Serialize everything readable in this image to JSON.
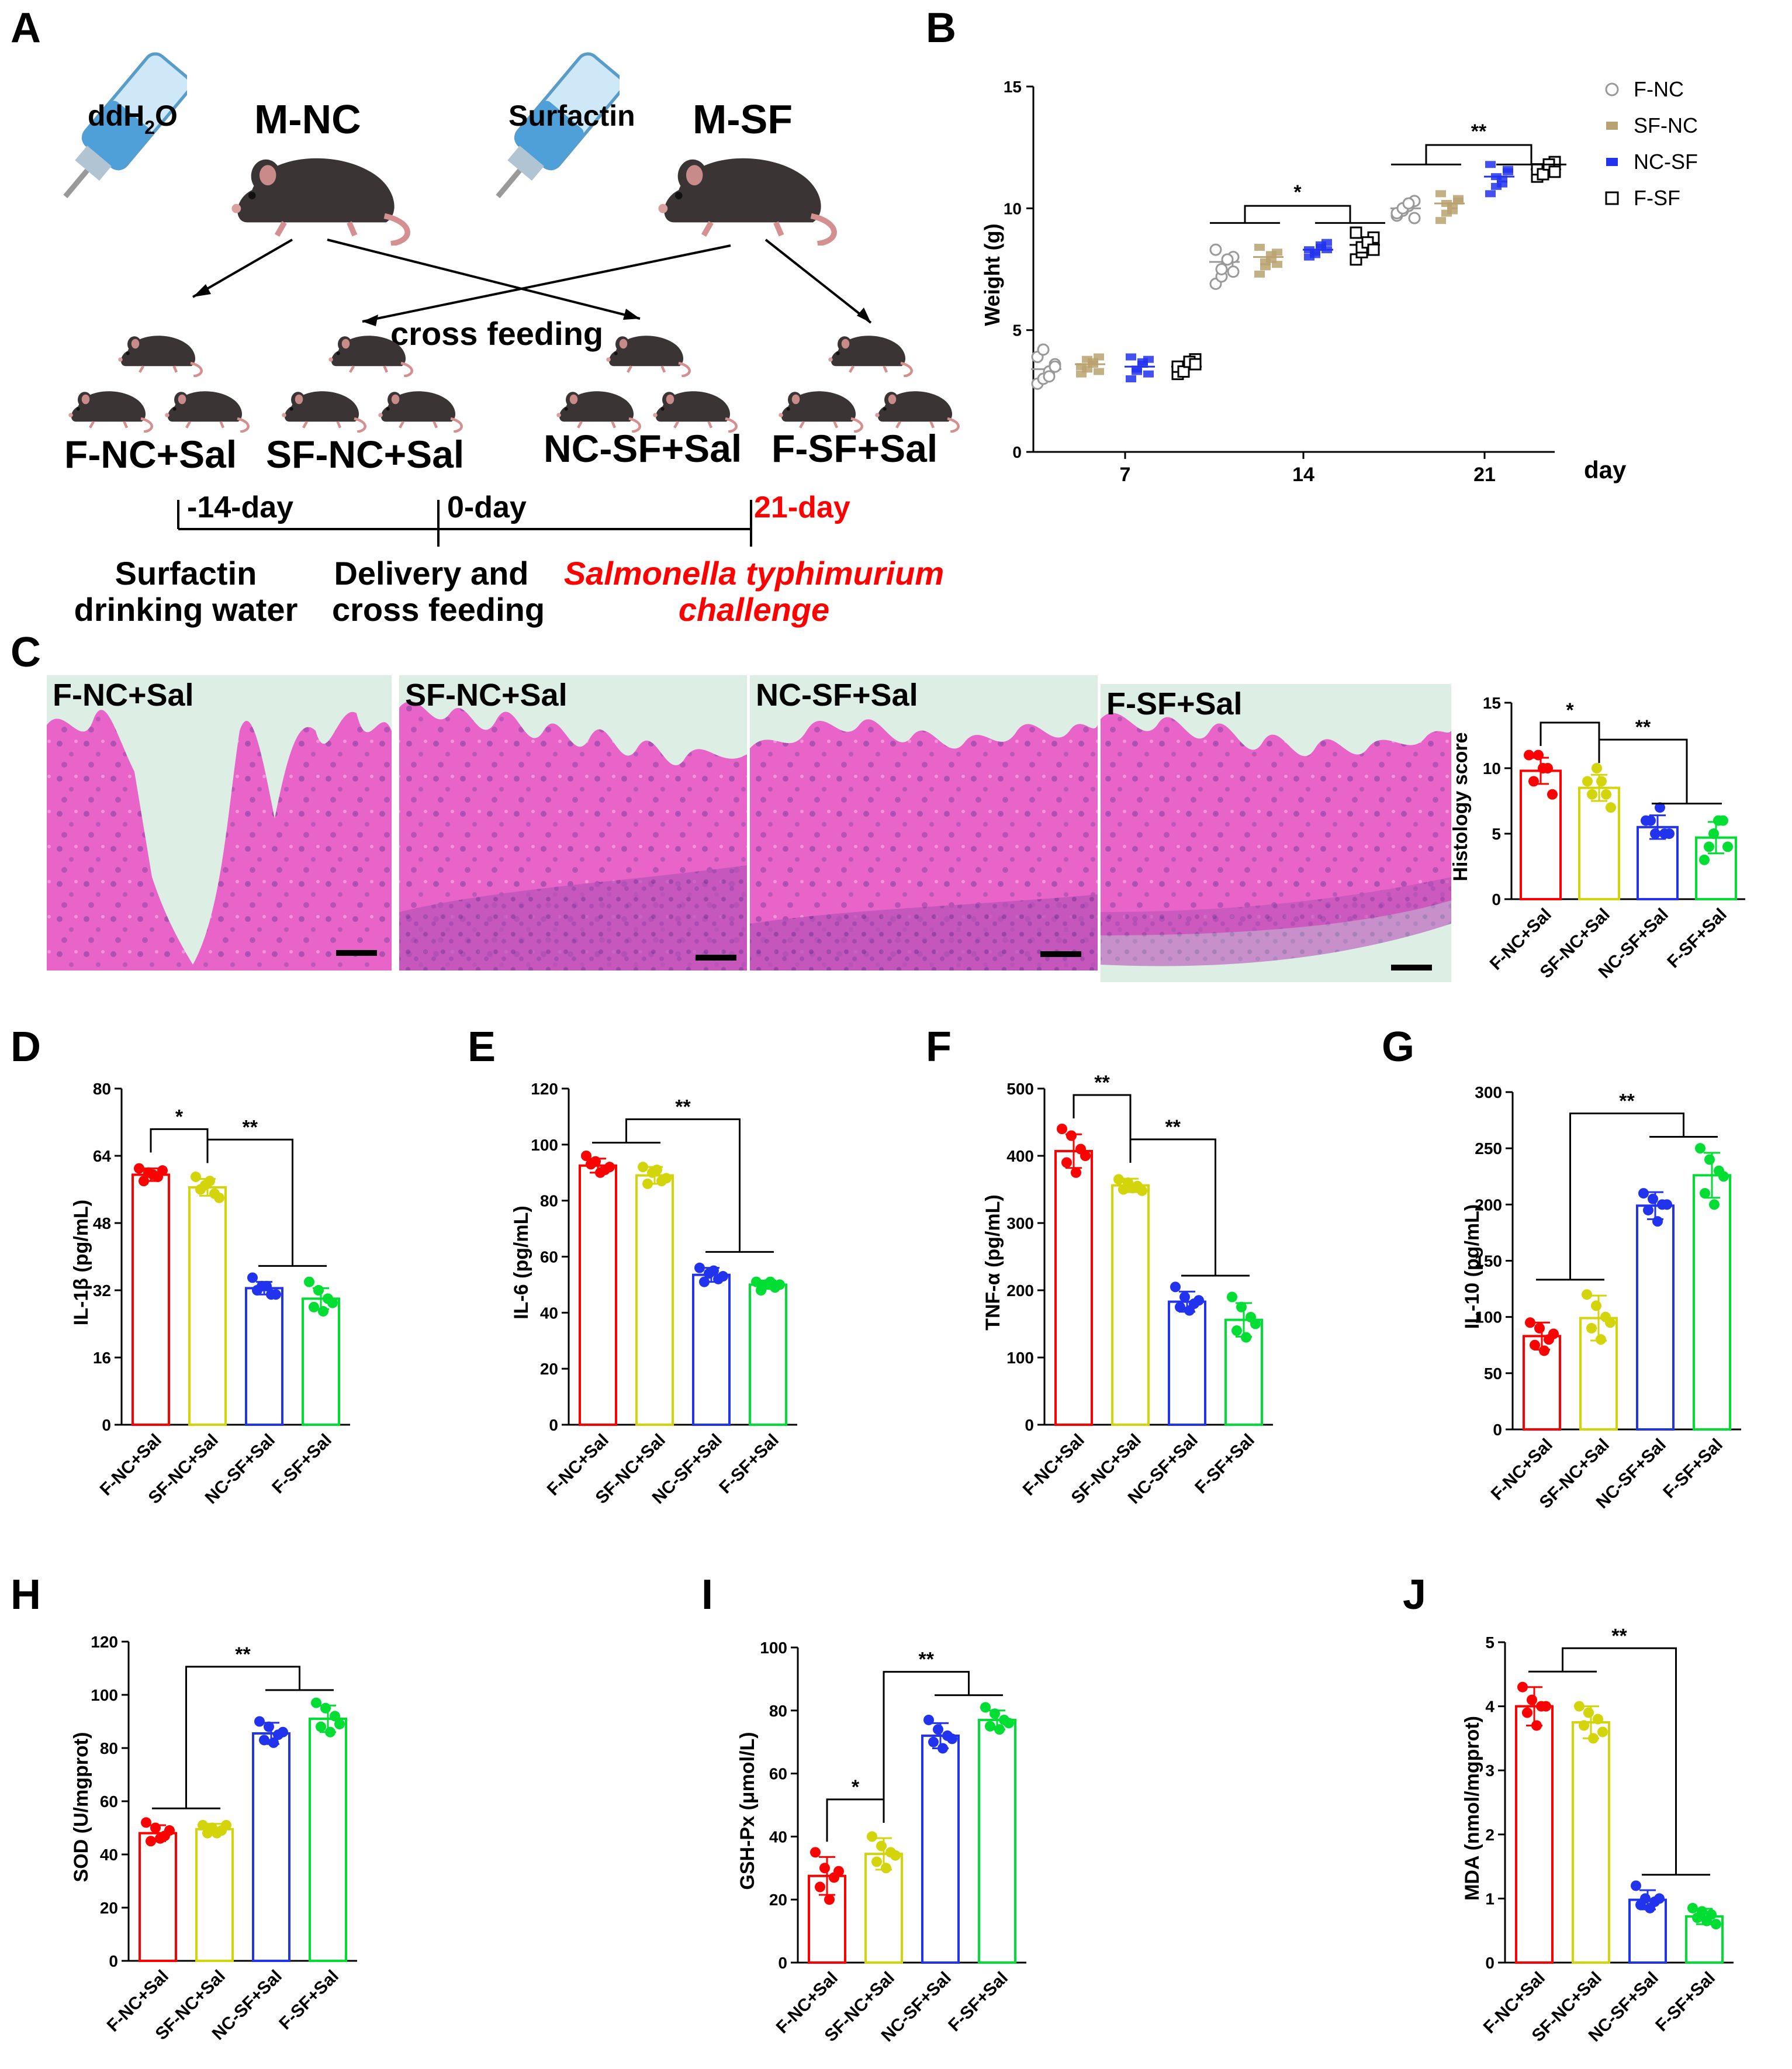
{
  "panel_letters": [
    "A",
    "B",
    "C",
    "D",
    "E",
    "F",
    "G",
    "H",
    "I",
    "J"
  ],
  "schematic": {
    "left_bottle": "ddH",
    "left_bottle_sub": "2",
    "left_bottle_suffix": "O",
    "right_bottle": "Surfactin",
    "mother_left": "M-NC",
    "mother_right": "M-SF",
    "cross_label": "cross feeding",
    "groups": [
      "F-NC+Sal",
      "SF-NC+Sal",
      "NC-SF+Sal",
      "F-SF+Sal"
    ],
    "timeline": {
      "points": [
        "-14-day",
        "0-day",
        "21-day"
      ],
      "events": [
        [
          "Surfactin",
          "drinking water"
        ],
        [
          "Delivery and",
          "cross feeding"
        ],
        [
          "Salmonella typhimurium",
          "challenge"
        ]
      ]
    }
  },
  "histology": {
    "labels": [
      "F-NC+Sal",
      "SF-NC+Sal",
      "NC-SF+Sal",
      "F-SF+Sal"
    ]
  },
  "colors": {
    "F-NC+Sal": "#ff0000",
    "SF-NC+Sal": "#d4d40a",
    "NC-SF+Sal": "#2233ee",
    "F-SF+Sal": "#00dd33",
    "F-NC": "#999999",
    "SF-NC": "#b8a270",
    "NC-SF": "#2233ee",
    "F-SF": "#000000",
    "timeline_red": "#ff0000"
  },
  "chart_data": [
    {
      "id": "B",
      "type": "scatter",
      "xlabel": "day",
      "ylabel": "Weight (g)",
      "categories": [
        "7",
        "14",
        "21"
      ],
      "ylim": [
        0,
        15
      ],
      "yticks": [
        0,
        5,
        10,
        15
      ],
      "legend_position": "top-right",
      "series": [
        {
          "name": "F-NC",
          "means": [
            3.4,
            7.8,
            10.0
          ],
          "points": [
            [
              2.8,
              3.0,
              3.3,
              3.6,
              3.9,
              4.2,
              3.1,
              3.5
            ],
            [
              6.9,
              7.2,
              7.7,
              8.0,
              8.3,
              7.5,
              7.9,
              7.4
            ],
            [
              9.7,
              9.9,
              10.1,
              10.3,
              9.8,
              10.0,
              10.2,
              9.6
            ]
          ]
        },
        {
          "name": "SF-NC",
          "means": [
            3.6,
            8.0,
            10.2
          ],
          "points": [
            [
              3.2,
              3.4,
              3.7,
              3.9,
              3.5,
              3.8,
              3.6,
              3.3
            ],
            [
              7.3,
              7.6,
              7.9,
              8.2,
              8.4,
              7.8,
              8.1,
              7.7
            ],
            [
              9.5,
              9.8,
              10.1,
              10.4,
              10.6,
              10.2,
              9.9,
              10.3
            ]
          ]
        },
        {
          "name": "NC-SF",
          "means": [
            3.5,
            8.3,
            11.3
          ],
          "points": [
            [
              3.0,
              3.3,
              3.6,
              3.8,
              3.9,
              3.4,
              3.7,
              3.2
            ],
            [
              8.0,
              8.2,
              8.4,
              8.6,
              8.3,
              8.1,
              8.5,
              8.3
            ],
            [
              10.6,
              10.9,
              11.2,
              11.5,
              11.8,
              11.3,
              11.0,
              11.6
            ]
          ]
        },
        {
          "name": "F-SF",
          "means": [
            3.5,
            8.5,
            11.6
          ],
          "points": [
            [
              3.2,
              3.4,
              3.6,
              3.8,
              3.5,
              3.3,
              3.7,
              3.6
            ],
            [
              7.9,
              8.2,
              8.5,
              8.8,
              9.0,
              8.4,
              8.6,
              8.3
            ],
            [
              11.3,
              11.5,
              11.7,
              11.9,
              11.6,
              11.4,
              11.8,
              11.5
            ]
          ]
        }
      ],
      "annotations": [
        {
          "day": "14",
          "text": "*"
        },
        {
          "day": "21",
          "text": "**"
        }
      ]
    },
    {
      "id": "C",
      "type": "bar",
      "ylabel": "Histology score",
      "categories": [
        "F-NC+Sal",
        "SF-NC+Sal",
        "NC-SF+Sal",
        "F-SF+Sal"
      ],
      "values": [
        9.8,
        8.5,
        5.5,
        4.7
      ],
      "errors": [
        1.0,
        1.0,
        0.9,
        1.2
      ],
      "points": [
        [
          11,
          11,
          10,
          9,
          10,
          8
        ],
        [
          9,
          10,
          8,
          8,
          9,
          7
        ],
        [
          6,
          5,
          5,
          6,
          7,
          5
        ],
        [
          3,
          5,
          6,
          4,
          6,
          4
        ]
      ],
      "ylim": [
        0,
        15
      ],
      "yticks": [
        0,
        5,
        10,
        15
      ],
      "brackets": [
        {
          "a": [
            0
          ],
          "b": [
            1
          ],
          "text": "*"
        },
        {
          "a": [
            1
          ],
          "b": [
            2,
            3
          ],
          "text": "**"
        }
      ]
    },
    {
      "id": "D",
      "type": "bar",
      "ylabel": "IL-1β (pg/mL)",
      "categories": [
        "F-NC+Sal",
        "SF-NC+Sal",
        "NC-SF+Sal",
        "F-SF+Sal"
      ],
      "values": [
        59.5,
        56.5,
        32.5,
        30.0
      ],
      "errors": [
        1.5,
        2.0,
        1.5,
        2.5
      ],
      "points": [
        [
          61,
          60,
          59,
          58,
          59.5,
          60.5
        ],
        [
          59,
          57,
          55,
          56,
          58,
          54
        ],
        [
          35,
          33,
          31,
          32,
          33,
          31
        ],
        [
          34,
          32,
          30,
          28,
          27,
          29
        ]
      ],
      "ylim": [
        0,
        80
      ],
      "yticks": [
        0,
        16,
        32,
        48,
        64,
        80
      ],
      "brackets": [
        {
          "a": [
            0
          ],
          "b": [
            1
          ],
          "text": "*"
        },
        {
          "a": [
            1
          ],
          "b": [
            2,
            3
          ],
          "text": "**"
        }
      ]
    },
    {
      "id": "E",
      "type": "bar",
      "ylabel": "IL-6 (pg/mL)",
      "categories": [
        "F-NC+Sal",
        "SF-NC+Sal",
        "NC-SF+Sal",
        "F-SF+Sal"
      ],
      "values": [
        92.5,
        89.0,
        53.5,
        50.0
      ],
      "errors": [
        2.5,
        3.0,
        2.5,
        1.5
      ],
      "points": [
        [
          96,
          94,
          91,
          93,
          90,
          92
        ],
        [
          92,
          90,
          87,
          86,
          91,
          88
        ],
        [
          56,
          54,
          52,
          51,
          55,
          53
        ],
        [
          51,
          50,
          49,
          48,
          51,
          50
        ]
      ],
      "ylim": [
        0,
        120
      ],
      "yticks": [
        0,
        20,
        40,
        60,
        80,
        100,
        120
      ],
      "brackets": [
        {
          "a": [
            0,
            1
          ],
          "b": [
            2,
            3
          ],
          "text": "**"
        }
      ]
    },
    {
      "id": "F",
      "type": "bar",
      "ylabel": "TNF-α (pg/mL)",
      "categories": [
        "F-NC+Sal",
        "SF-NC+Sal",
        "NC-SF+Sal",
        "F-SF+Sal"
      ],
      "values": [
        407,
        356,
        183,
        156
      ],
      "errors": [
        25,
        10,
        15,
        25
      ],
      "points": [
        [
          440,
          430,
          410,
          390,
          375,
          400
        ],
        [
          365,
          360,
          355,
          350,
          352,
          348
        ],
        [
          205,
          190,
          180,
          175,
          170,
          185
        ],
        [
          190,
          175,
          160,
          140,
          130,
          150
        ]
      ],
      "ylim": [
        0,
        500
      ],
      "yticks": [
        0,
        100,
        200,
        300,
        400,
        500
      ],
      "brackets": [
        {
          "a": [
            0
          ],
          "b": [
            1
          ],
          "text": "**"
        },
        {
          "a": [
            1
          ],
          "b": [
            2,
            3
          ],
          "text": "**"
        }
      ]
    },
    {
      "id": "G",
      "type": "bar",
      "ylabel": "IL-10 (pg/mL)",
      "categories": [
        "F-NC+Sal",
        "SF-NC+Sal",
        "NC-SF+Sal",
        "F-SF+Sal"
      ],
      "values": [
        83,
        99,
        199,
        226
      ],
      "errors": [
        12,
        20,
        12,
        20
      ],
      "points": [
        [
          95,
          90,
          80,
          75,
          70,
          85
        ],
        [
          120,
          110,
          100,
          90,
          80,
          95
        ],
        [
          210,
          205,
          200,
          195,
          185,
          200
        ],
        [
          250,
          240,
          230,
          210,
          200,
          225
        ]
      ],
      "ylim": [
        0,
        300
      ],
      "yticks": [
        0,
        50,
        100,
        150,
        200,
        250,
        300
      ],
      "brackets": [
        {
          "a": [
            0,
            1
          ],
          "b": [
            2,
            3
          ],
          "text": "**"
        }
      ]
    },
    {
      "id": "H",
      "type": "bar",
      "ylabel": "SOD (U/mgprot)",
      "categories": [
        "F-NC+Sal",
        "SF-NC+Sal",
        "NC-SF+Sal",
        "F-SF+Sal"
      ],
      "values": [
        48,
        49.5,
        85.5,
        91.0
      ],
      "errors": [
        3,
        2,
        4,
        5
      ],
      "points": [
        [
          52,
          50,
          47,
          45,
          46,
          49
        ],
        [
          51,
          50,
          49,
          48,
          48,
          51
        ],
        [
          90,
          88,
          85,
          83,
          82,
          86
        ],
        [
          97,
          95,
          92,
          88,
          86,
          89
        ]
      ],
      "ylim": [
        0,
        120
      ],
      "yticks": [
        0,
        20,
        40,
        60,
        80,
        100,
        120
      ],
      "brackets": [
        {
          "a": [
            0,
            1
          ],
          "b": [
            2,
            3
          ],
          "text": "**"
        }
      ]
    },
    {
      "id": "I",
      "type": "bar",
      "ylabel": "GSH-Px (μmol/L)",
      "categories": [
        "F-NC+Sal",
        "SF-NC+Sal",
        "NC-SF+Sal",
        "F-SF+Sal"
      ],
      "values": [
        27.5,
        34.5,
        72.0,
        77.0
      ],
      "errors": [
        6,
        5,
        4,
        3
      ],
      "points": [
        [
          35,
          30,
          27,
          24,
          20,
          29
        ],
        [
          40,
          37,
          35,
          32,
          30,
          34
        ],
        [
          77,
          74,
          72,
          70,
          68,
          71
        ],
        [
          81,
          79,
          77,
          75,
          74,
          76
        ]
      ],
      "ylim": [
        0,
        100
      ],
      "yticks": [
        0,
        20,
        40,
        60,
        80,
        100
      ],
      "brackets": [
        {
          "a": [
            0
          ],
          "b": [
            1
          ],
          "text": "*"
        },
        {
          "a": [
            1
          ],
          "b": [
            2,
            3
          ],
          "text": "**"
        }
      ]
    },
    {
      "id": "J",
      "type": "bar",
      "ylabel": "MDA (nmol/mgprot)",
      "categories": [
        "F-NC+Sal",
        "SF-NC+Sal",
        "NC-SF+Sal",
        "F-SF+Sal"
      ],
      "values": [
        4.0,
        3.75,
        0.98,
        0.72
      ],
      "errors": [
        0.3,
        0.25,
        0.15,
        0.12
      ],
      "points": [
        [
          4.3,
          4.1,
          4.0,
          3.9,
          3.7,
          4.0
        ],
        [
          4.0,
          3.9,
          3.8,
          3.7,
          3.5,
          3.6
        ],
        [
          1.2,
          1.0,
          0.95,
          0.9,
          0.85,
          1.0
        ],
        [
          0.85,
          0.8,
          0.75,
          0.7,
          0.65,
          0.6
        ]
      ],
      "ylim": [
        0,
        5
      ],
      "yticks": [
        0,
        1,
        2,
        3,
        4,
        5
      ],
      "brackets": [
        {
          "a": [
            0,
            1
          ],
          "b": [
            2,
            3
          ],
          "text": "**"
        }
      ]
    }
  ]
}
